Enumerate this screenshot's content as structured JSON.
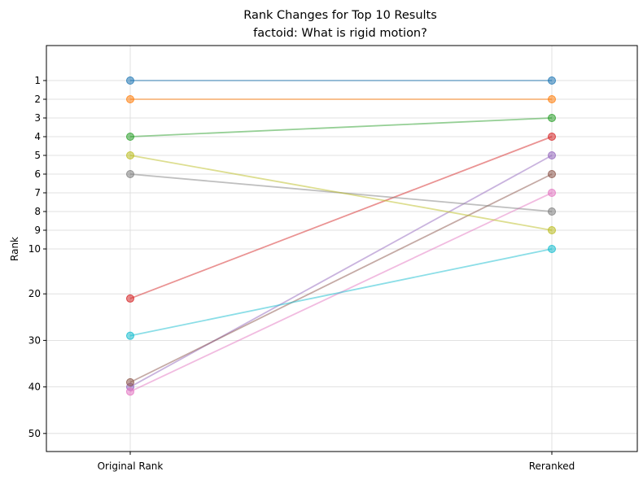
{
  "chart_data": {
    "type": "line",
    "title": "Rank Changes for Top 10 Results",
    "subtitle": "factoid: What is rigid motion?",
    "ylabel": "Rank",
    "xlabel": "",
    "categories": [
      "Original Rank",
      "Reranked"
    ],
    "y_ticks": [
      "1",
      "2",
      "3",
      "4",
      "5",
      "6",
      "7",
      "8",
      "9",
      "10",
      "20",
      "30",
      "40",
      "50"
    ],
    "y_tick_values": [
      1,
      2,
      3,
      4,
      5,
      6,
      7,
      8,
      9,
      10,
      20,
      30,
      40,
      50
    ],
    "y_inverted": true,
    "grid": true,
    "series": [
      {
        "values": [
          1,
          1
        ],
        "color": "#1f77b4"
      },
      {
        "values": [
          2,
          2
        ],
        "color": "#ff7f0e"
      },
      {
        "values": [
          4,
          3
        ],
        "color": "#2ca02c"
      },
      {
        "values": [
          21,
          4
        ],
        "color": "#d62728"
      },
      {
        "values": [
          40,
          5
        ],
        "color": "#9467bd"
      },
      {
        "values": [
          39,
          6
        ],
        "color": "#8c564b"
      },
      {
        "values": [
          41,
          7
        ],
        "color": "#e377c2"
      },
      {
        "values": [
          6,
          8
        ],
        "color": "#7f7f7f"
      },
      {
        "values": [
          5,
          9
        ],
        "color": "#bcbd22"
      },
      {
        "values": [
          29,
          10
        ],
        "color": "#17becf"
      }
    ]
  }
}
